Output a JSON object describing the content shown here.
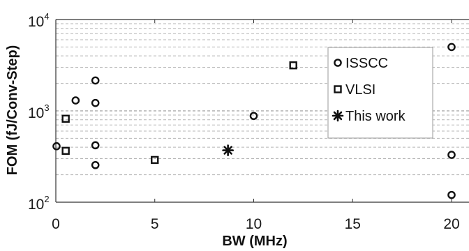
{
  "chart_data": {
    "type": "scatter",
    "xlabel": "BW (MHz)",
    "ylabel": "FOM (fJ/Conv-Step)",
    "xlim": [
      0,
      20
    ],
    "ylim": [
      100,
      10000
    ],
    "y_scale": "log",
    "x_ticks": [
      0,
      5,
      10,
      15,
      20
    ],
    "y_ticks": [
      {
        "value": 100,
        "base": "10",
        "exp": "2"
      },
      {
        "value": 1000,
        "base": "10",
        "exp": "3"
      },
      {
        "value": 10000,
        "base": "10",
        "exp": "4"
      }
    ],
    "grid": "horizontal dashed, major and minor (log)",
    "legend_position": "top-right",
    "series": [
      {
        "name": "ISSCC",
        "marker": "circle",
        "x": [
          0,
          1,
          2,
          2,
          2,
          2,
          10,
          20,
          20,
          20
        ],
        "y": [
          410,
          1300,
          2150,
          1220,
          420,
          255,
          880,
          5000,
          330,
          120
        ]
      },
      {
        "name": "VLSI",
        "marker": "square",
        "x": [
          0.5,
          0.5,
          5,
          12
        ],
        "y": [
          820,
          365,
          290,
          3150
        ]
      },
      {
        "name": "This work",
        "marker": "asterisk",
        "x": [
          8.7
        ],
        "y": [
          370
        ]
      }
    ]
  }
}
